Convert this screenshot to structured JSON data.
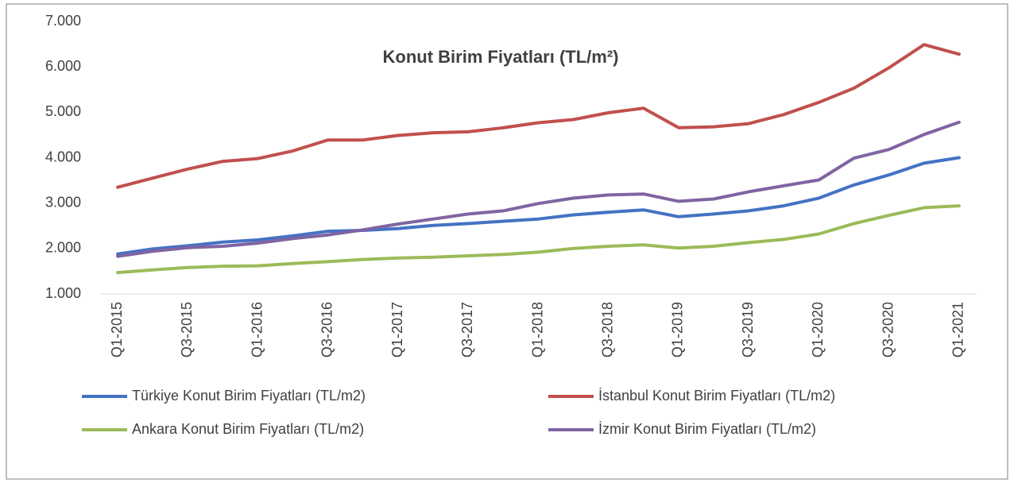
{
  "chart_data": {
    "type": "line",
    "title": "Konut Birim Fiyatları (TL/m²)",
    "categories": [
      "Q1-2015",
      null,
      "Q3-2015",
      null,
      "Q1-2016",
      null,
      "Q3-2016",
      null,
      "Q1-2017",
      null,
      "Q3-2017",
      null,
      "Q1-2018",
      null,
      "Q3-2018",
      null,
      "Q1-2019",
      null,
      "Q3-2019",
      null,
      "Q1-2020",
      null,
      "Q3-2020",
      null,
      "Q1-2021"
    ],
    "series": [
      {
        "name": "Türkiye Konut Birim Fiyatları (TL/m2)",
        "color": "#4472c4",
        "values": [
          1880,
          1990,
          2060,
          2140,
          2190,
          2280,
          2380,
          2400,
          2440,
          2510,
          2550,
          2600,
          2650,
          2740,
          2800,
          2850,
          2700,
          2760,
          2830,
          2940,
          3110,
          3400,
          3620,
          3880,
          4000
        ]
      },
      {
        "name": "İstanbul Konut Birim Fiyatları (TL/m2)",
        "color": "#c0504d",
        "values": [
          3350,
          3550,
          3750,
          3920,
          3980,
          4150,
          4390,
          4390,
          4490,
          4550,
          4570,
          4660,
          4770,
          4840,
          4990,
          5090,
          4660,
          4680,
          4750,
          4950,
          5220,
          5530,
          5980,
          6490,
          6280
        ]
      },
      {
        "name": "Ankara Konut Birim Fiyatları (TL/m2)",
        "color": "#9bbb59",
        "values": [
          1470,
          1530,
          1580,
          1610,
          1620,
          1670,
          1710,
          1760,
          1790,
          1810,
          1840,
          1870,
          1920,
          2000,
          2050,
          2080,
          2010,
          2050,
          2130,
          2200,
          2320,
          2550,
          2730,
          2900,
          2940
        ]
      },
      {
        "name": "İzmir Konut Birim Fiyatları (TL/m2)",
        "color": "#8064a2",
        "values": [
          1830,
          1940,
          2020,
          2050,
          2120,
          2220,
          2300,
          2410,
          2540,
          2650,
          2760,
          2830,
          2990,
          3110,
          3180,
          3200,
          3040,
          3090,
          3250,
          3380,
          3510,
          3990,
          4180,
          4510,
          4780
        ]
      }
    ],
    "ylim": [
      1000,
      7000
    ],
    "yticks": [
      {
        "value": 1000,
        "label": "1.000"
      },
      {
        "value": 2000,
        "label": "2.000"
      },
      {
        "value": 3000,
        "label": "3.000"
      },
      {
        "value": 4000,
        "label": "4.000"
      },
      {
        "value": 5000,
        "label": "5.000"
      },
      {
        "value": 6000,
        "label": "6.000"
      },
      {
        "value": 7000,
        "label": "7.000"
      }
    ],
    "grid": false
  }
}
